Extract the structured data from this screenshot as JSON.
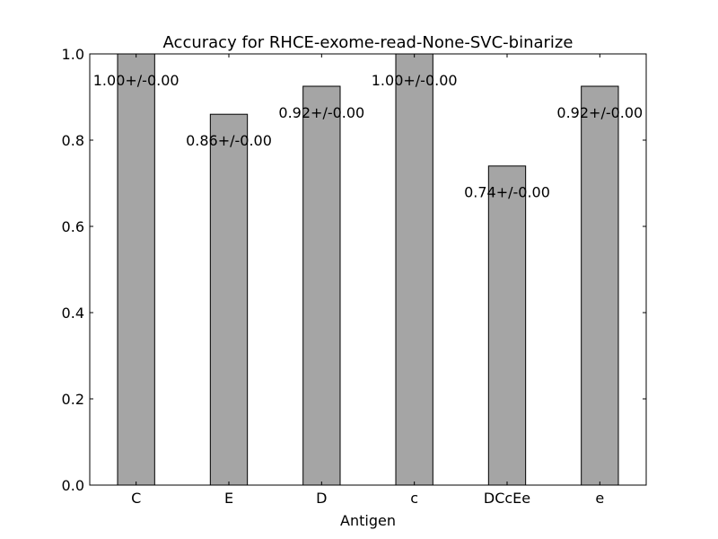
{
  "chart_data": {
    "type": "bar",
    "title": "Accuracy for RHCE-exome-read-None-SVC-binarize",
    "xlabel": "Antigen",
    "ylabel": "",
    "categories": [
      "C",
      "E",
      "D",
      "c",
      "DCcEe",
      "e"
    ],
    "values": [
      1.0,
      0.86,
      0.925,
      1.0,
      0.74,
      0.925
    ],
    "data_labels": [
      "1.00+/-0.00",
      "0.86+/-0.00",
      "0.92+/-0.00",
      "1.00+/-0.00",
      "0.74+/-0.00",
      "0.92+/-0.00"
    ],
    "ylim": [
      0,
      1.0
    ],
    "yticks": [
      "0.0",
      "0.2",
      "0.4",
      "0.6",
      "0.8",
      "1.0"
    ],
    "ytick_values": [
      0,
      0.2,
      0.4,
      0.6,
      0.8,
      1.0
    ],
    "grid": false,
    "bar_color": "#a5a5a5",
    "edge_color": "#000000"
  }
}
